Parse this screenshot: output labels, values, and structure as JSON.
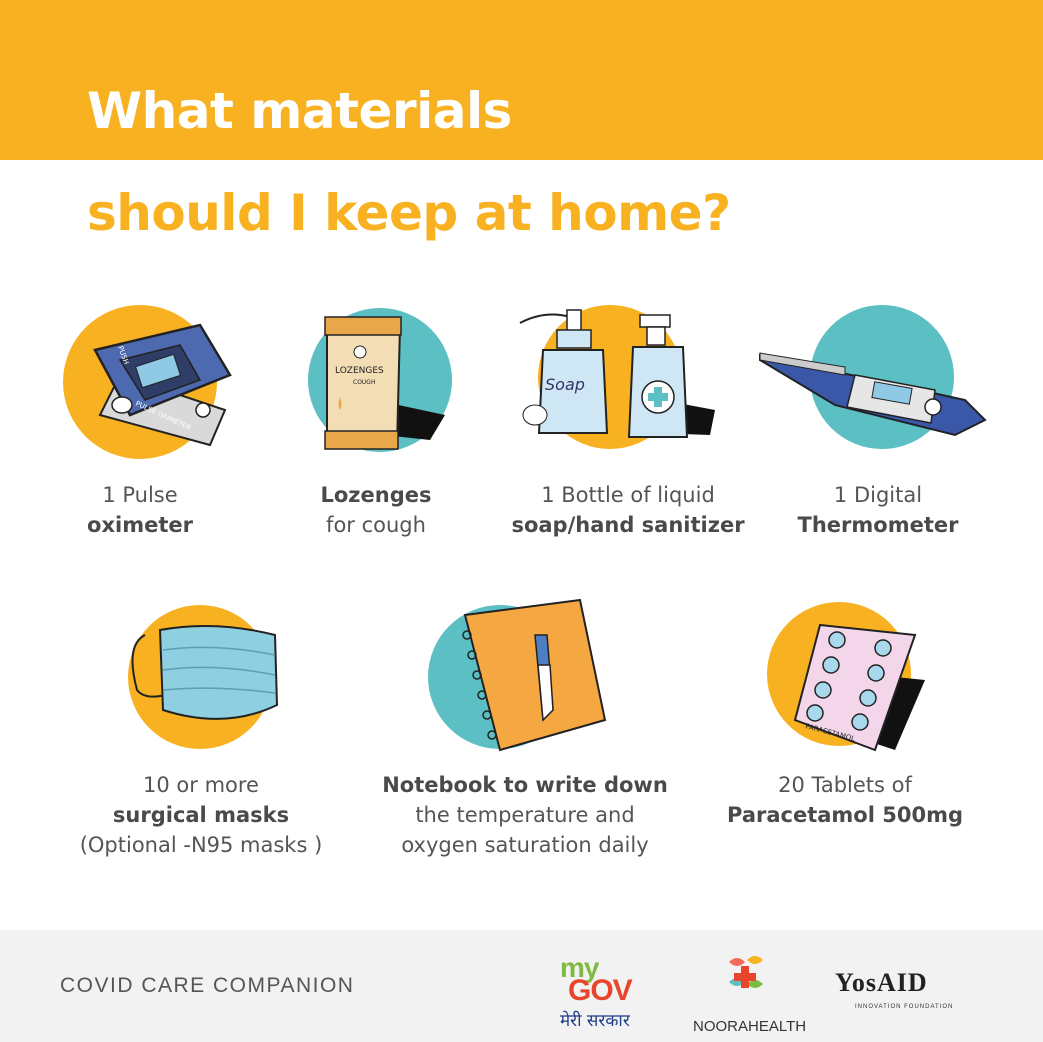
{
  "header": {
    "title_line1": "What materials",
    "title_line2": "should I keep at home?"
  },
  "items": [
    {
      "line1": "1 Pulse",
      "line2": "oximeter",
      "icon": "pulse-oximeter-icon"
    },
    {
      "line1": "Lozenges",
      "line2": "for cough",
      "icon": "lozenges-icon"
    },
    {
      "line1": "1 Bottle of liquid",
      "line2": "soap/hand sanitizer",
      "icon": "soap-sanitizer-icon"
    },
    {
      "line1": "1 Digital",
      "line2": "Thermometer",
      "icon": "thermometer-icon"
    },
    {
      "line1": "10 or more",
      "line2": "surgical masks",
      "line3": "(Optional -N95 masks )",
      "icon": "surgical-mask-icon"
    },
    {
      "line1": "Notebook to write down",
      "line2": "the temperature and",
      "line3": "oxygen saturation daily",
      "icon": "notebook-icon"
    },
    {
      "line1": "20 Tablets of",
      "line2": "Paracetamol 500mg",
      "icon": "paracetamol-icon"
    }
  ],
  "art_labels": {
    "lozenges": "LOZENGES",
    "lozenges_sub": "COUGH",
    "soap": "Soap",
    "paracetamol": "PARACETAMOL",
    "oximeter": "PULSE OXIMETER",
    "oximeter_push": "PUSH"
  },
  "footer": {
    "label": "COVID CARE COMPANION",
    "logos": {
      "mygov_my": "my",
      "mygov_gov": "GOV",
      "mygov_hindi": "मेरी सरकार",
      "noora": "NOORAHEALTH",
      "yosaid": "YosAID",
      "yosaid_sub": "INNOVATION FOUNDATION"
    }
  },
  "colors": {
    "orange": "#f8b121",
    "teal": "#5bbfc4",
    "text": "#555555",
    "footer_bg": "#f2f2f2"
  }
}
